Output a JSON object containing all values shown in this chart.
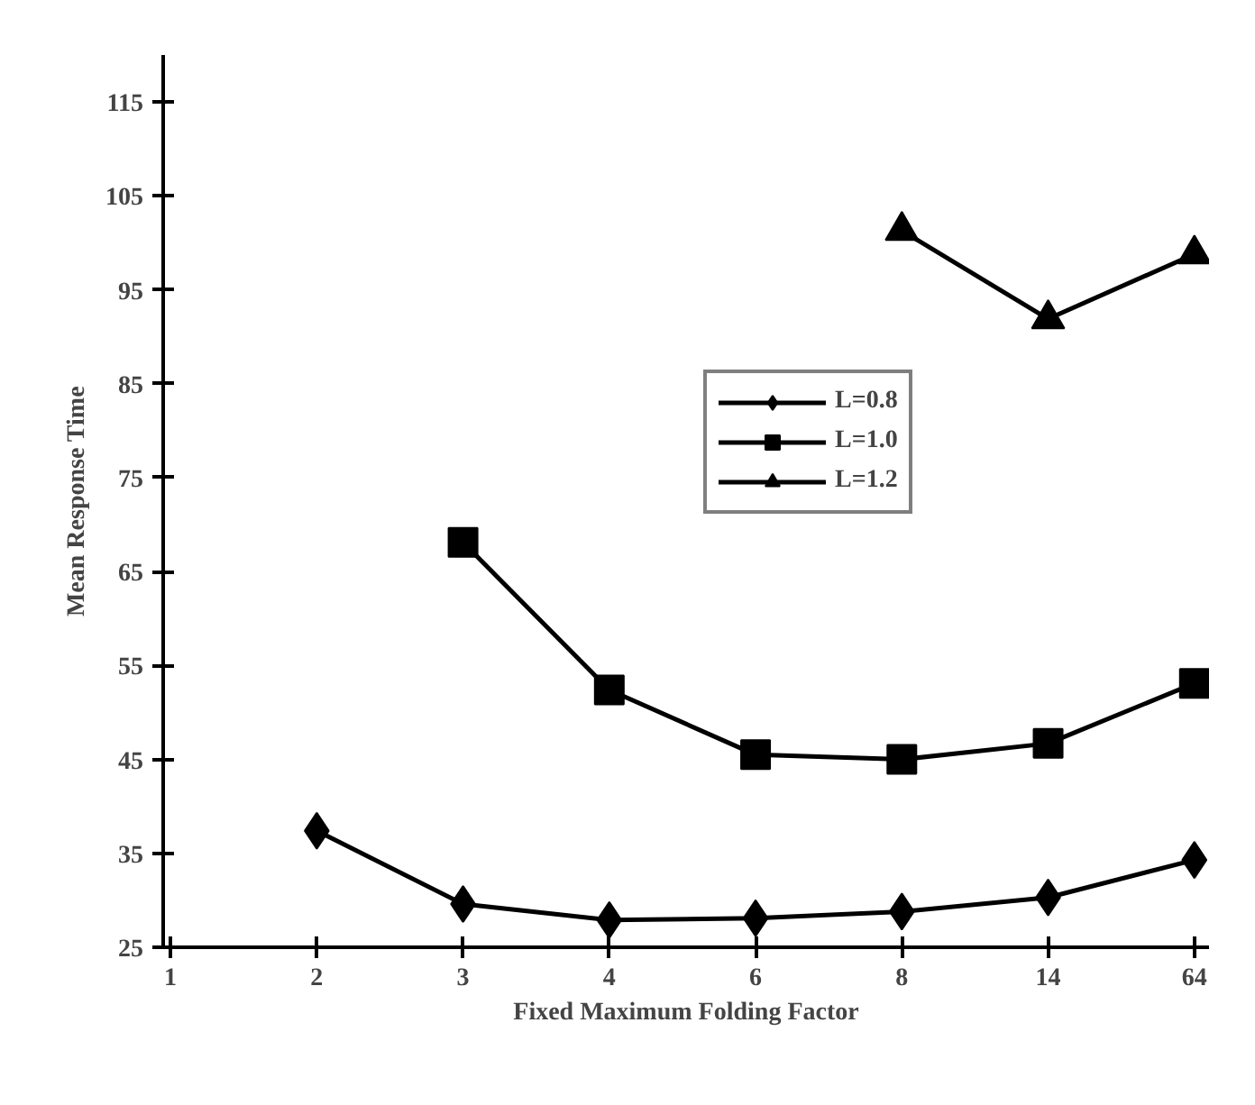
{
  "chart_data": {
    "type": "line",
    "xlabel": "Fixed Maximum Folding Factor",
    "ylabel": "Mean Response Time",
    "categories": [
      "1",
      "2",
      "3",
      "4",
      "6",
      "8",
      "14",
      "64"
    ],
    "series": [
      {
        "name": "L=0.8",
        "color": "#000000",
        "marker": "diamond",
        "values": [
          null,
          37.4,
          29.6,
          27.9,
          28.1,
          28.8,
          30.3,
          34.3
        ]
      },
      {
        "name": "L=1.0",
        "color": "#000000",
        "marker": "square",
        "values": [
          null,
          null,
          68.1,
          52.4,
          45.5,
          45.0,
          46.7,
          53.1
        ]
      },
      {
        "name": "L=1.2",
        "color": "#000000",
        "marker": "triangle",
        "values": [
          null,
          null,
          null,
          null,
          null,
          101.3,
          91.9,
          98.8
        ]
      }
    ],
    "ylim": [
      25,
      120
    ],
    "yticks": [
      25,
      35,
      45,
      55,
      65,
      75,
      85,
      95,
      105,
      115
    ],
    "grid": false,
    "legend": "center",
    "line_style": "solid"
  }
}
